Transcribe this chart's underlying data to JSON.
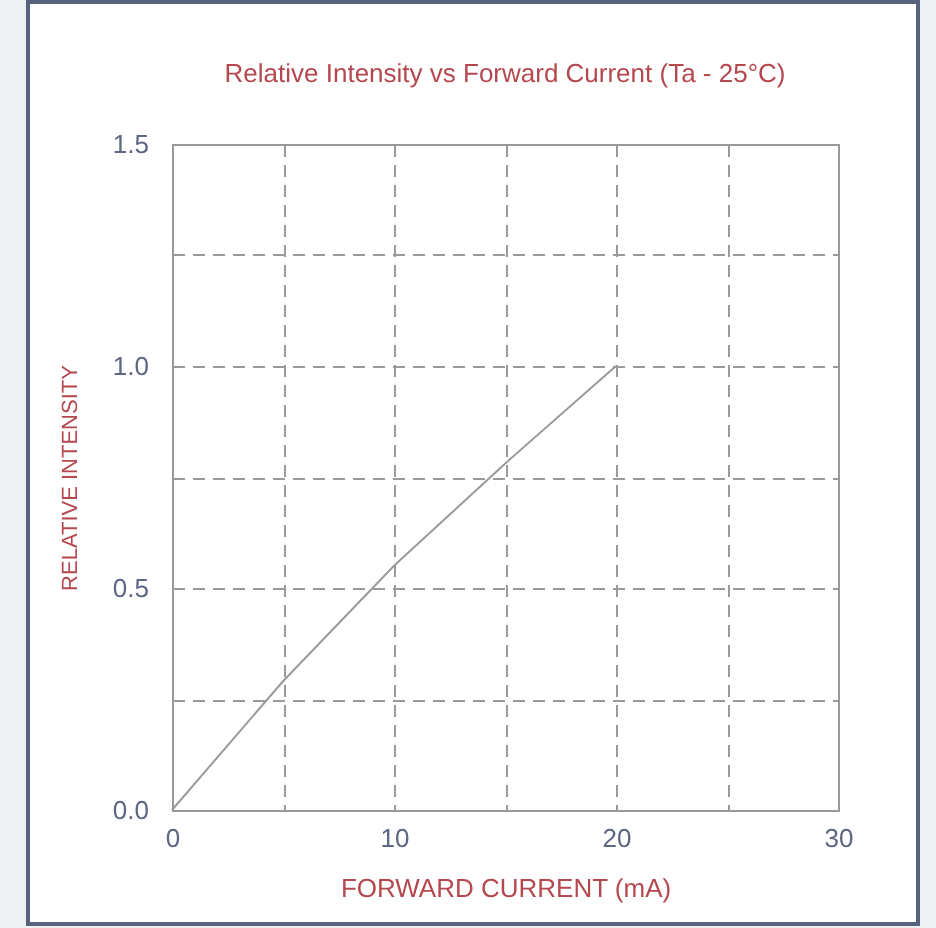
{
  "chart_data": {
    "type": "line",
    "title": "Relative Intensity vs Forward Current (Ta - 25°C)",
    "xlabel": "FORWARD CURRENT (mA)",
    "ylabel": "RELATIVE INTENSITY",
    "x": [
      0,
      5,
      10,
      15,
      20
    ],
    "series": [
      {
        "color": "#9a9a9a",
        "values": [
          0,
          0.29,
          0.55,
          0.78,
          1.0
        ]
      }
    ],
    "xlim": [
      0,
      30
    ],
    "ylim": [
      0,
      1.5
    ],
    "xticks": [
      0,
      {
        "value": 5,
        "label": null
      },
      10,
      {
        "value": 15,
        "label": null
      },
      20,
      {
        "value": 25,
        "label": null
      },
      30
    ],
    "yticks": [
      {
        "value": 0,
        "label": "0.0"
      },
      {
        "value": 0.25,
        "label": null
      },
      0.5,
      {
        "value": 0.75,
        "label": null
      },
      {
        "value": 1,
        "label": "1.0"
      },
      {
        "value": 1.25,
        "label": null
      },
      1.5
    ],
    "grid": true,
    "line_style": "solid",
    "marker": "none"
  }
}
